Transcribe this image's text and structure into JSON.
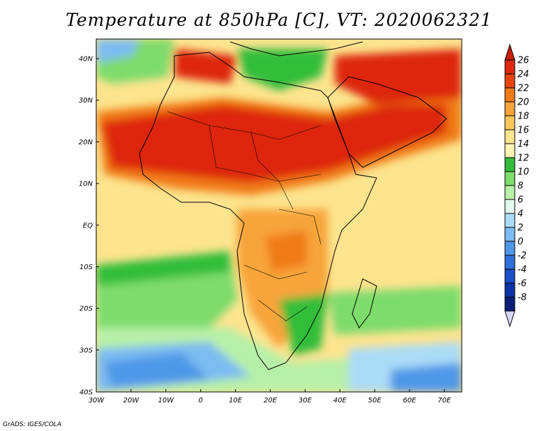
{
  "title": "Temperature at 850hPa [C], VT: 2020062321",
  "credit": "GrADS: IGES/COLA",
  "map": {
    "lat_labels": [
      "40N",
      "30N",
      "20N",
      "10N",
      "EQ",
      "10S",
      "20S",
      "30S",
      "40S"
    ],
    "lon_labels": [
      "30W",
      "20W",
      "10W",
      "0",
      "10E",
      "20E",
      "30E",
      "40E",
      "50E",
      "60E",
      "70E"
    ],
    "lat_range": [
      -40,
      45
    ],
    "lon_range": [
      -30,
      75
    ]
  },
  "colorbar": {
    "labels": [
      "26",
      "24",
      "22",
      "20",
      "18",
      "16",
      "14",
      "12",
      "10",
      "8",
      "6",
      "4",
      "2",
      "0",
      "-2",
      "-4",
      "-6",
      "-8"
    ],
    "colors": [
      "#dd2711",
      "#e6430d",
      "#f07a16",
      "#f7a43b",
      "#fac85a",
      "#fde48e",
      "#fef4b4",
      "#33bd3a",
      "#7edc6c",
      "#b7f0a8",
      "#e3fbef",
      "#aadcf6",
      "#7bbcf1",
      "#4f97e8",
      "#2e6fdc",
      "#1a4fc8",
      "#0c34a6",
      "#0b1f78"
    ],
    "top_color": "#c81e0c",
    "bottom_color": "#d8d8ff"
  }
}
